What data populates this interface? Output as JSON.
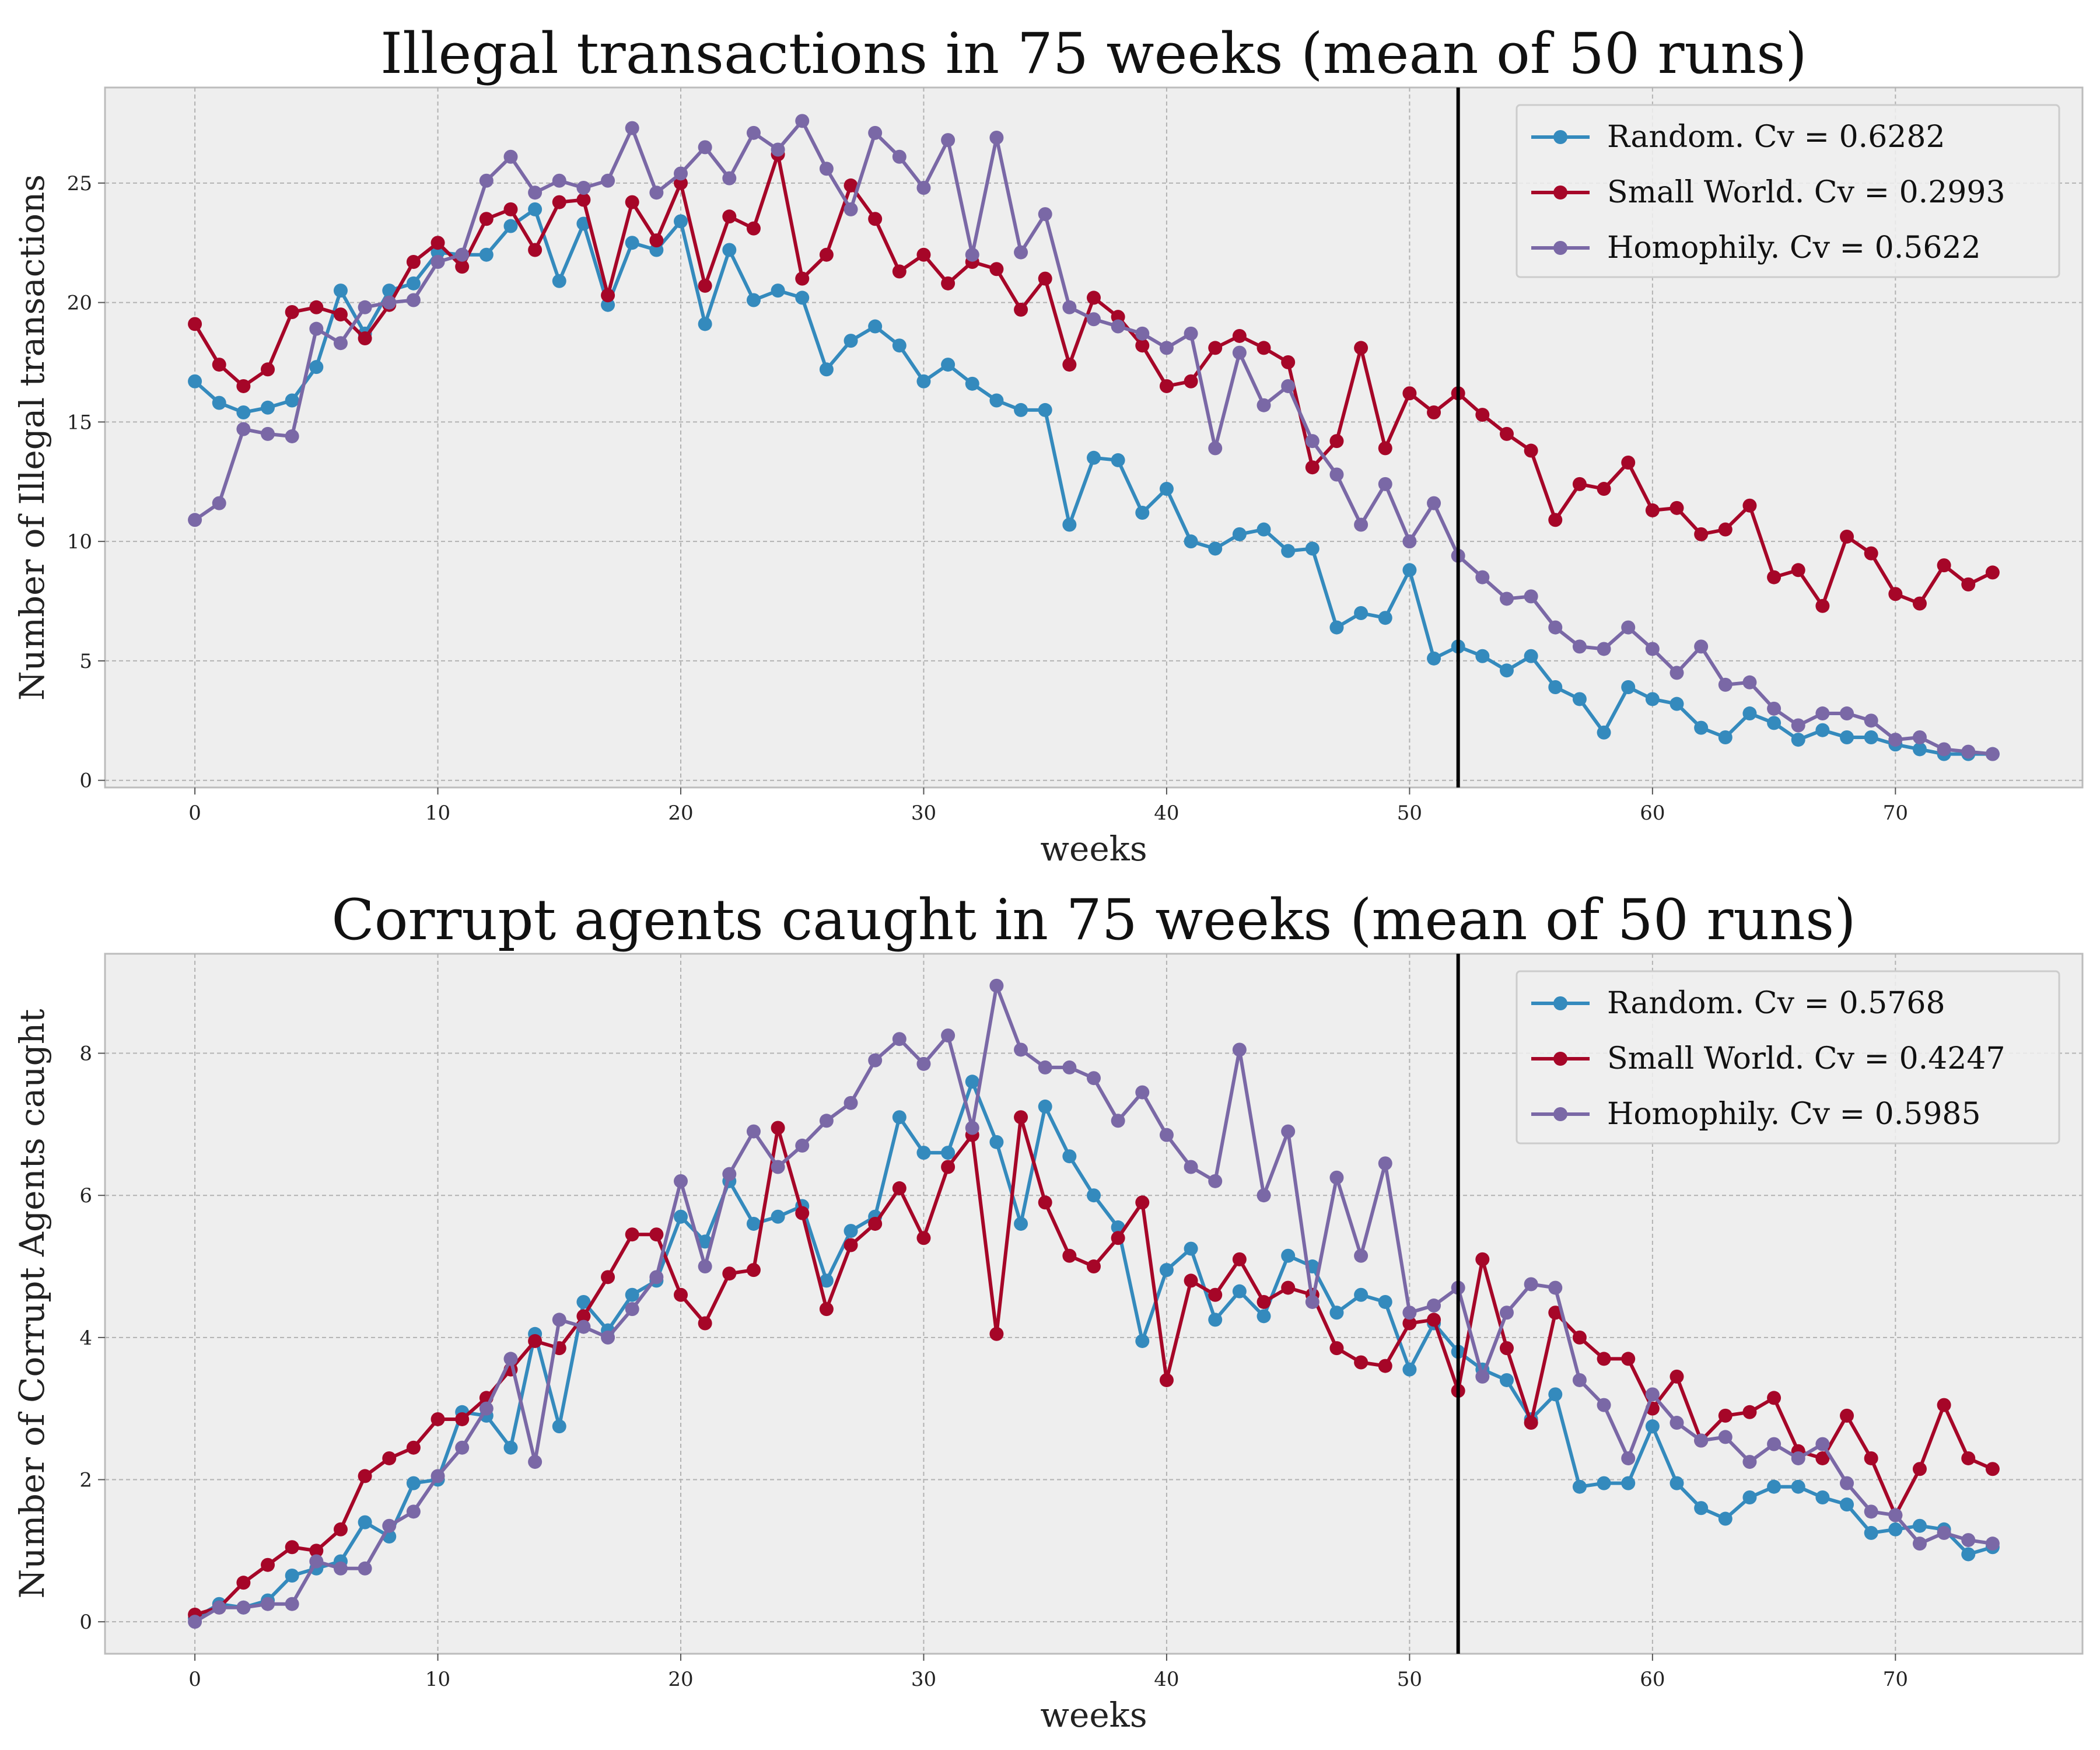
{
  "chart_data": [
    {
      "type": "line",
      "title": "Illegal transactions in 75 weeks (mean of 50 runs)",
      "xlabel": "weeks",
      "ylabel": "Number of Illegal transactions",
      "xlim": [
        -3.7,
        77.7
      ],
      "ylim": [
        -0.3,
        29
      ],
      "xticks": [
        0,
        10,
        20,
        30,
        40,
        50,
        60,
        70
      ],
      "yticks": [
        0,
        5,
        10,
        15,
        20,
        25
      ],
      "grid": true,
      "legend": "top-right",
      "vline_x": 52,
      "x_start": 0,
      "series": [
        {
          "name": "Random. Cv = 0.6282",
          "color": "#348abd",
          "values": [
            16.7,
            15.8,
            15.4,
            15.6,
            15.9,
            17.3,
            20.5,
            18.7,
            20.5,
            20.8,
            22.1,
            22.0,
            22.0,
            23.2,
            23.9,
            20.9,
            23.3,
            19.9,
            22.5,
            22.2,
            23.4,
            19.1,
            22.2,
            20.1,
            20.5,
            20.2,
            17.2,
            18.4,
            19.0,
            18.2,
            16.7,
            17.4,
            16.6,
            15.9,
            15.5,
            15.5,
            10.7,
            13.5,
            13.4,
            11.2,
            12.2,
            10.0,
            9.7,
            10.3,
            10.5,
            9.6,
            9.7,
            6.4,
            7.0,
            6.8,
            8.8,
            5.1,
            5.6,
            5.2,
            4.6,
            5.2,
            3.9,
            3.4,
            2.0,
            3.9,
            3.4,
            3.2,
            2.2,
            1.8,
            2.8,
            2.4,
            1.7,
            2.1,
            1.8,
            1.8,
            1.5,
            1.3,
            1.1,
            1.1,
            1.1
          ]
        },
        {
          "name": "Small World. Cv = 0.2993",
          "color": "#a60628",
          "values": [
            19.1,
            17.4,
            16.5,
            17.2,
            19.6,
            19.8,
            19.5,
            18.5,
            19.9,
            21.7,
            22.5,
            21.5,
            23.5,
            23.9,
            22.2,
            24.2,
            24.3,
            20.3,
            24.2,
            22.6,
            25.0,
            20.7,
            23.6,
            23.1,
            26.2,
            21.0,
            22.0,
            24.9,
            23.5,
            21.3,
            22.0,
            20.8,
            21.7,
            21.4,
            19.7,
            21.0,
            17.4,
            20.2,
            19.4,
            18.2,
            16.5,
            16.7,
            18.1,
            18.6,
            18.1,
            17.5,
            13.1,
            14.2,
            18.1,
            13.9,
            16.2,
            15.4,
            16.2,
            15.3,
            14.5,
            13.8,
            10.9,
            12.4,
            12.2,
            13.3,
            11.3,
            11.4,
            10.3,
            10.5,
            11.5,
            8.5,
            8.8,
            7.3,
            10.2,
            9.5,
            7.8,
            7.4,
            9.0,
            8.2,
            8.7
          ]
        },
        {
          "name": "Homophily. Cv = 0.5622",
          "color": "#7a68a6",
          "values": [
            10.9,
            11.6,
            14.7,
            14.5,
            14.4,
            18.9,
            18.3,
            19.8,
            20.0,
            20.1,
            21.7,
            22.0,
            25.1,
            26.1,
            24.6,
            25.1,
            24.8,
            25.1,
            27.3,
            24.6,
            25.4,
            26.5,
            25.2,
            27.1,
            26.4,
            27.6,
            25.6,
            23.9,
            27.1,
            26.1,
            24.8,
            26.8,
            22.0,
            26.9,
            22.1,
            23.7,
            19.8,
            19.3,
            19.0,
            18.7,
            18.1,
            18.7,
            13.9,
            17.9,
            15.7,
            16.5,
            14.2,
            12.8,
            10.7,
            12.4,
            10.0,
            11.6,
            9.4,
            8.5,
            7.6,
            7.7,
            6.4,
            5.6,
            5.5,
            6.4,
            5.5,
            4.5,
            5.6,
            4.0,
            4.1,
            3.0,
            2.3,
            2.8,
            2.8,
            2.5,
            1.7,
            1.8,
            1.3,
            1.2,
            1.1
          ]
        }
      ]
    },
    {
      "type": "line",
      "title": "Corrupt agents caught in 75 weeks (mean of 50 runs)",
      "xlabel": "weeks",
      "ylabel": "Number of Corrupt Agents caught",
      "xlim": [
        -3.7,
        77.7
      ],
      "ylim": [
        -0.45,
        9.4
      ],
      "xticks": [
        0,
        10,
        20,
        30,
        40,
        50,
        60,
        70
      ],
      "yticks": [
        0,
        2,
        4,
        6,
        8
      ],
      "grid": true,
      "legend": "top-right",
      "vline_x": 52,
      "x_start": 0,
      "series": [
        {
          "name": "Random. Cv = 0.5768",
          "color": "#348abd",
          "values": [
            0.05,
            0.25,
            0.2,
            0.3,
            0.65,
            0.75,
            0.85,
            1.4,
            1.2,
            1.95,
            2.0,
            2.95,
            2.9,
            2.45,
            4.05,
            2.75,
            4.5,
            4.1,
            4.6,
            4.8,
            5.7,
            5.35,
            6.2,
            5.6,
            5.7,
            5.85,
            4.8,
            5.5,
            5.7,
            7.1,
            6.6,
            6.6,
            7.6,
            6.75,
            5.6,
            7.25,
            6.55,
            6.0,
            5.55,
            3.95,
            4.95,
            5.25,
            4.25,
            4.65,
            4.3,
            5.15,
            5.0,
            4.35,
            4.6,
            4.5,
            3.55,
            4.2,
            3.8,
            3.55,
            3.4,
            2.85,
            3.2,
            1.9,
            1.95,
            1.95,
            2.75,
            1.95,
            1.6,
            1.45,
            1.75,
            1.9,
            1.9,
            1.75,
            1.65,
            1.25,
            1.3,
            1.35,
            1.3,
            0.95,
            1.05
          ]
        },
        {
          "name": "Small World. Cv = 0.4247",
          "color": "#a60628",
          "values": [
            0.1,
            0.2,
            0.55,
            0.8,
            1.05,
            1.0,
            1.3,
            2.05,
            2.3,
            2.45,
            2.85,
            2.85,
            3.15,
            3.55,
            3.95,
            3.85,
            4.3,
            4.85,
            5.45,
            5.45,
            4.6,
            4.2,
            4.9,
            4.95,
            6.95,
            5.75,
            4.4,
            5.3,
            5.6,
            6.1,
            5.4,
            6.4,
            6.85,
            4.05,
            7.1,
            5.9,
            5.15,
            5.0,
            5.4,
            5.9,
            3.4,
            4.8,
            4.6,
            5.1,
            4.5,
            4.7,
            4.6,
            3.85,
            3.65,
            3.6,
            4.2,
            4.25,
            3.25,
            5.1,
            3.85,
            2.8,
            4.35,
            4.0,
            3.7,
            3.7,
            3.0,
            3.45,
            2.55,
            2.9,
            2.95,
            3.15,
            2.4,
            2.3,
            2.9,
            2.3,
            1.5,
            2.15,
            3.05,
            2.3,
            2.15
          ]
        },
        {
          "name": "Homophily. Cv = 0.5985",
          "color": "#7a68a6",
          "values": [
            0.0,
            0.2,
            0.2,
            0.25,
            0.25,
            0.85,
            0.75,
            0.75,
            1.35,
            1.55,
            2.05,
            2.45,
            3.0,
            3.7,
            2.25,
            4.25,
            4.15,
            4.0,
            4.4,
            4.85,
            6.2,
            5.0,
            6.3,
            6.9,
            6.4,
            6.7,
            7.05,
            7.3,
            7.9,
            8.2,
            7.85,
            8.25,
            6.95,
            8.95,
            8.05,
            7.8,
            7.8,
            7.65,
            7.05,
            7.45,
            6.85,
            6.4,
            6.2,
            8.05,
            6.0,
            6.9,
            4.5,
            6.25,
            5.15,
            6.45,
            4.35,
            4.45,
            4.7,
            3.45,
            4.35,
            4.75,
            4.7,
            3.4,
            3.05,
            2.3,
            3.2,
            2.8,
            2.55,
            2.6,
            2.25,
            2.5,
            2.3,
            2.5,
            1.95,
            1.55,
            1.5,
            1.1,
            1.25,
            1.15,
            1.1
          ]
        }
      ]
    }
  ]
}
